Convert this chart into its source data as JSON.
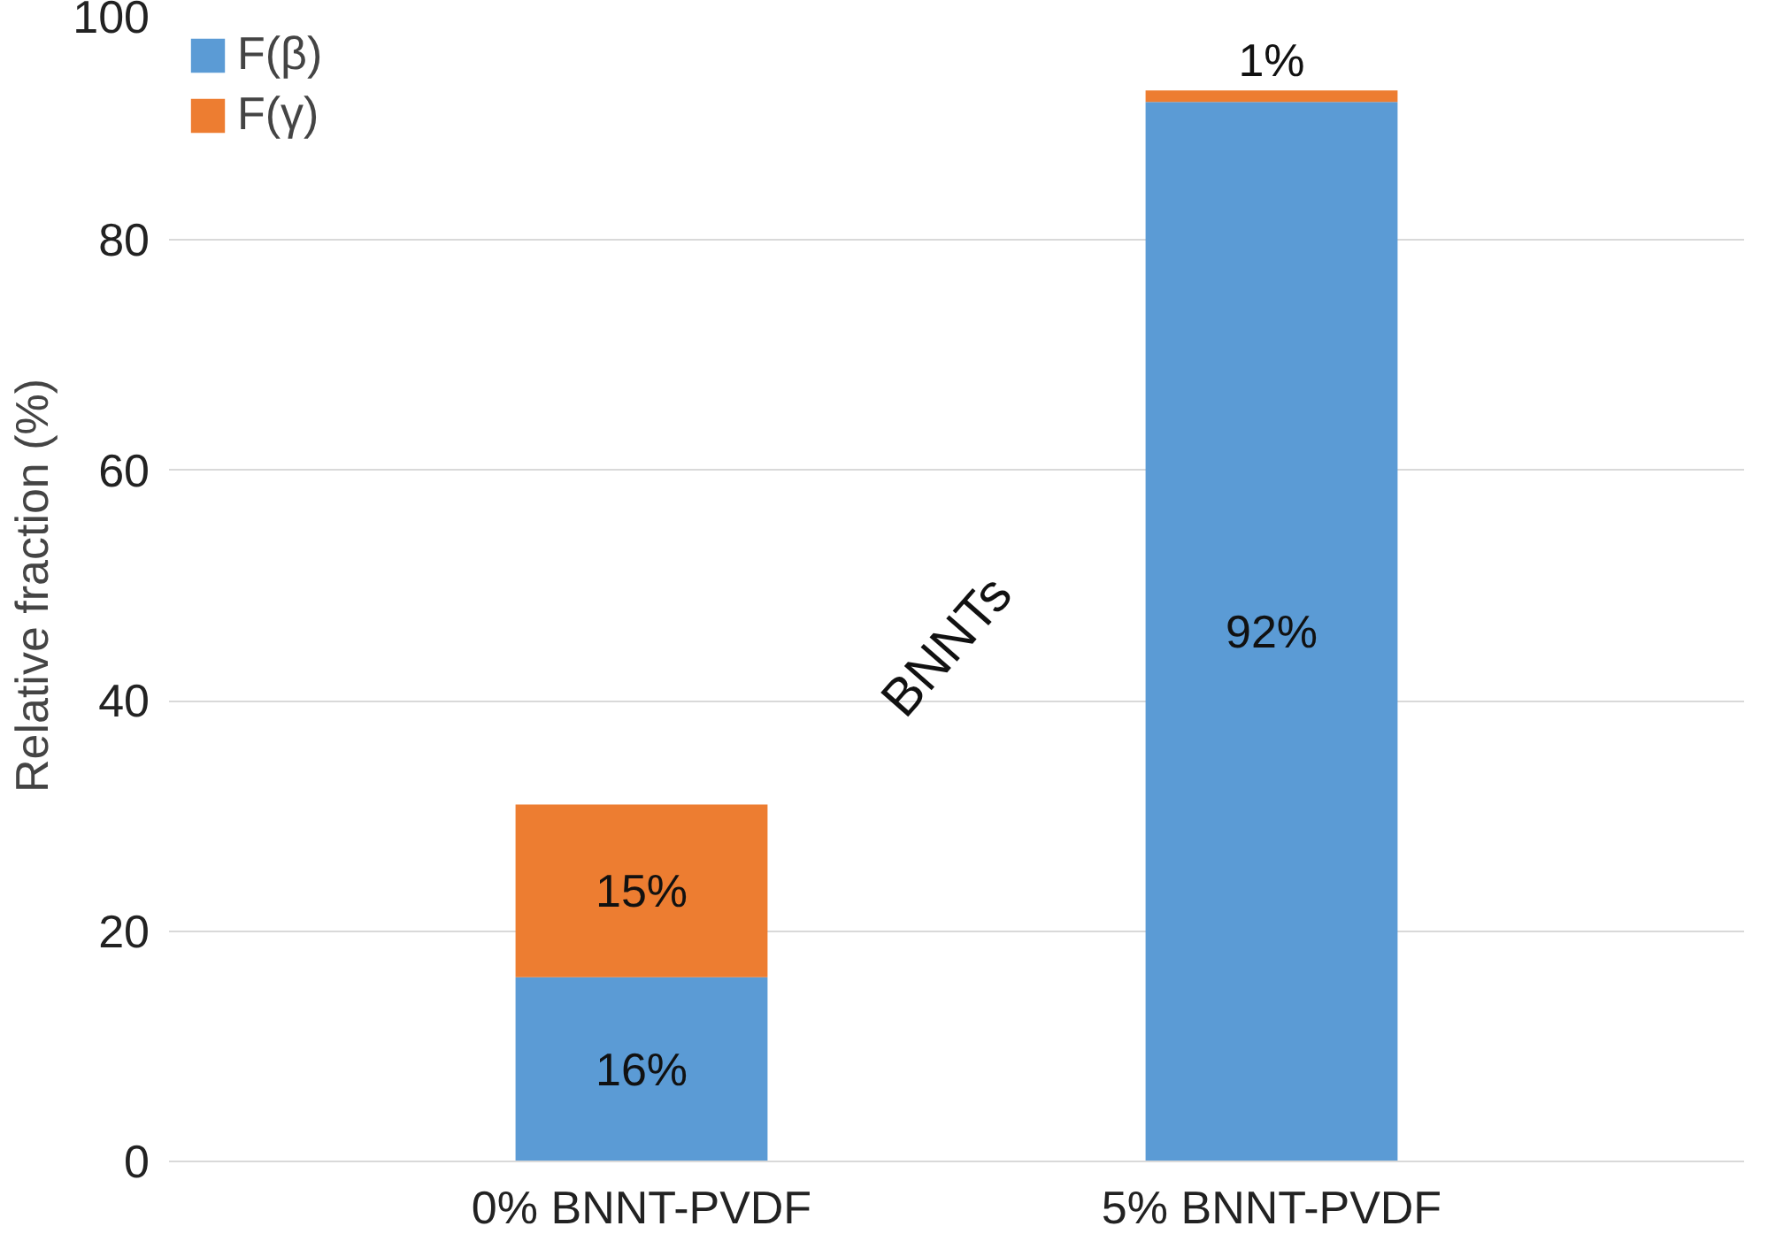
{
  "chart_data": {
    "type": "bar",
    "stacked": true,
    "ylabel": "Relative fraction (%)",
    "categories": [
      "0% BNNT-PVDF",
      "5% BNNT-PVDF"
    ],
    "series": [
      {
        "name": "F(β)",
        "color": "#5b9bd5",
        "values": [
          16,
          92
        ],
        "value_labels": [
          "16%",
          "92%"
        ]
      },
      {
        "name": "F(γ)",
        "color": "#ed7d31",
        "values": [
          15,
          1
        ],
        "value_labels": [
          "15%",
          "1%"
        ]
      }
    ],
    "ylim": [
      0,
      100
    ],
    "yticks": [
      0,
      20,
      40,
      60,
      80,
      100
    ],
    "grid": "y",
    "legend": "top left",
    "annotations": [
      "BNNTs"
    ]
  }
}
